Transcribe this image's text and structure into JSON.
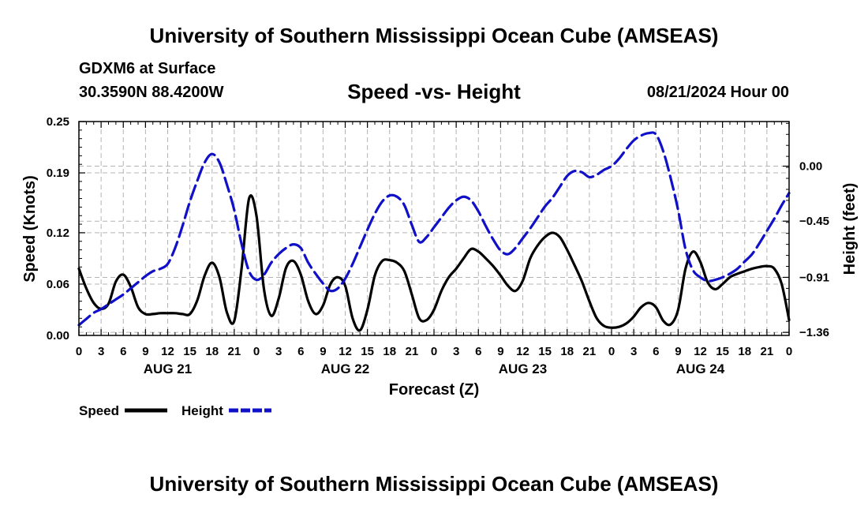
{
  "header": {
    "title": "University of Southern Mississippi Ocean Cube (AMSEAS)",
    "station": "GDXM6 at Surface",
    "coords": "30.3590N  88.4200W",
    "date": "08/21/2024 Hour 00"
  },
  "footer": {
    "title": "University of Southern Mississippi Ocean Cube (AMSEAS)"
  },
  "chart_data": {
    "type": "line",
    "title": "Speed -vs- Height",
    "xlabel": "Forecast (Z)",
    "ylabel_left": "Speed (Knots)",
    "ylabel_right": "Height (feet)",
    "x_range_hours": [
      0,
      96
    ],
    "x_tick_labels": [
      "0",
      "3",
      "6",
      "9",
      "12",
      "15",
      "18",
      "21",
      "0",
      "3",
      "6",
      "9",
      "12",
      "15",
      "18",
      "21",
      "0",
      "3",
      "6",
      "9",
      "12",
      "15",
      "18",
      "21",
      "0",
      "3",
      "6",
      "9",
      "12",
      "15",
      "18",
      "21",
      "0"
    ],
    "day_labels": [
      {
        "label": "AUG 21",
        "hour": 12
      },
      {
        "label": "AUG 22",
        "hour": 36
      },
      {
        "label": "AUG 23",
        "hour": 60
      },
      {
        "label": "AUG 24",
        "hour": 84
      }
    ],
    "left_axis": {
      "ylim": [
        0.0,
        0.25
      ],
      "tick_values": [
        0.0,
        0.06,
        0.12,
        0.19,
        0.25
      ],
      "tick_labels": [
        "0.00",
        "0.06",
        "0.12",
        "0.19",
        "0.25"
      ]
    },
    "right_axis": {
      "ylim": [
        -1.385,
        0.365
      ],
      "tick_values": [
        -1.36,
        -0.91,
        -0.45,
        0.0
      ],
      "tick_labels": [
        "−1.36",
        "−0.91",
        "−0.45",
        "0.00"
      ]
    },
    "grid": true,
    "legend": {
      "position": "bottom-left",
      "entries": [
        {
          "name": "Speed",
          "color": "#000000",
          "style": "solid"
        },
        {
          "name": "Height",
          "color": "#1010c8",
          "style": "dashed"
        }
      ]
    },
    "series": [
      {
        "name": "Speed",
        "axis": "left",
        "color": "#000000",
        "style": "solid",
        "x": [
          0,
          1,
          2,
          3,
          4,
          5,
          6,
          7,
          8,
          9,
          10,
          11,
          12,
          13,
          14,
          15,
          16,
          17,
          18,
          19,
          20,
          21,
          22,
          23,
          24,
          25,
          26,
          27,
          28,
          29,
          30,
          31,
          32,
          33,
          34,
          35,
          36,
          37,
          38,
          39,
          40,
          41,
          42,
          43,
          44,
          45,
          46,
          47,
          48,
          49,
          50,
          51,
          52,
          53,
          54,
          55,
          56,
          57,
          58,
          59,
          60,
          61,
          62,
          63,
          64,
          65,
          66,
          67,
          68,
          69,
          70,
          71,
          72,
          73,
          74,
          75,
          76,
          77,
          78,
          79,
          80,
          81,
          82,
          83,
          84,
          85,
          86,
          87,
          88,
          89,
          90,
          91,
          92,
          93,
          94,
          95,
          96
        ],
        "values": [
          0.078,
          0.055,
          0.038,
          0.031,
          0.037,
          0.063,
          0.071,
          0.057,
          0.033,
          0.025,
          0.025,
          0.026,
          0.026,
          0.026,
          0.025,
          0.025,
          0.041,
          0.07,
          0.085,
          0.068,
          0.027,
          0.017,
          0.079,
          0.16,
          0.14,
          0.055,
          0.023,
          0.043,
          0.079,
          0.087,
          0.071,
          0.04,
          0.025,
          0.035,
          0.06,
          0.068,
          0.058,
          0.02,
          0.006,
          0.03,
          0.07,
          0.087,
          0.088,
          0.085,
          0.075,
          0.048,
          0.02,
          0.018,
          0.03,
          0.052,
          0.068,
          0.078,
          0.09,
          0.101,
          0.098,
          0.09,
          0.081,
          0.07,
          0.058,
          0.052,
          0.064,
          0.09,
          0.105,
          0.115,
          0.12,
          0.115,
          0.1,
          0.082,
          0.063,
          0.04,
          0.02,
          0.011,
          0.009,
          0.01,
          0.014,
          0.022,
          0.033,
          0.038,
          0.033,
          0.017,
          0.013,
          0.03,
          0.078,
          0.098,
          0.086,
          0.062,
          0.054,
          0.06,
          0.068,
          0.072,
          0.075,
          0.078,
          0.08,
          0.081,
          0.078,
          0.06,
          0.018
        ]
      },
      {
        "name": "Height",
        "axis": "right",
        "color": "#1010c8",
        "style": "dashed",
        "x": [
          0,
          1,
          2,
          3,
          4,
          5,
          6,
          7,
          8,
          9,
          10,
          11,
          12,
          13,
          14,
          15,
          16,
          17,
          18,
          19,
          20,
          21,
          22,
          23,
          24,
          25,
          26,
          27,
          28,
          29,
          30,
          31,
          32,
          33,
          34,
          35,
          36,
          37,
          38,
          39,
          40,
          41,
          42,
          43,
          44,
          45,
          46,
          47,
          48,
          49,
          50,
          51,
          52,
          53,
          54,
          55,
          56,
          57,
          58,
          59,
          60,
          61,
          62,
          63,
          64,
          65,
          66,
          67,
          68,
          69,
          70,
          71,
          72,
          73,
          74,
          75,
          76,
          77,
          78,
          79,
          80,
          81,
          82,
          83,
          84,
          85,
          86,
          87,
          88,
          89,
          90,
          91,
          92,
          93,
          94,
          95,
          96
        ],
        "values": [
          -1.3,
          -1.25,
          -1.2,
          -1.17,
          -1.13,
          -1.09,
          -1.05,
          -1.0,
          -0.95,
          -0.9,
          -0.86,
          -0.84,
          -0.8,
          -0.67,
          -0.49,
          -0.29,
          -0.12,
          0.03,
          0.1,
          0.03,
          -0.15,
          -0.36,
          -0.64,
          -0.86,
          -0.93,
          -0.89,
          -0.79,
          -0.72,
          -0.67,
          -0.64,
          -0.67,
          -0.79,
          -0.88,
          -0.96,
          -1.02,
          -1.0,
          -0.92,
          -0.8,
          -0.66,
          -0.52,
          -0.39,
          -0.29,
          -0.24,
          -0.25,
          -0.32,
          -0.48,
          -0.62,
          -0.58,
          -0.5,
          -0.42,
          -0.34,
          -0.28,
          -0.25,
          -0.28,
          -0.37,
          -0.49,
          -0.6,
          -0.69,
          -0.72,
          -0.67,
          -0.59,
          -0.51,
          -0.42,
          -0.33,
          -0.26,
          -0.17,
          -0.08,
          -0.04,
          -0.05,
          -0.09,
          -0.07,
          -0.03,
          0.0,
          0.06,
          0.14,
          0.21,
          0.25,
          0.27,
          0.26,
          0.12,
          -0.1,
          -0.36,
          -0.68,
          -0.85,
          -0.91,
          -0.94,
          -0.93,
          -0.91,
          -0.88,
          -0.84,
          -0.78,
          -0.72,
          -0.63,
          -0.53,
          -0.43,
          -0.32,
          -0.22
        ]
      }
    ]
  }
}
